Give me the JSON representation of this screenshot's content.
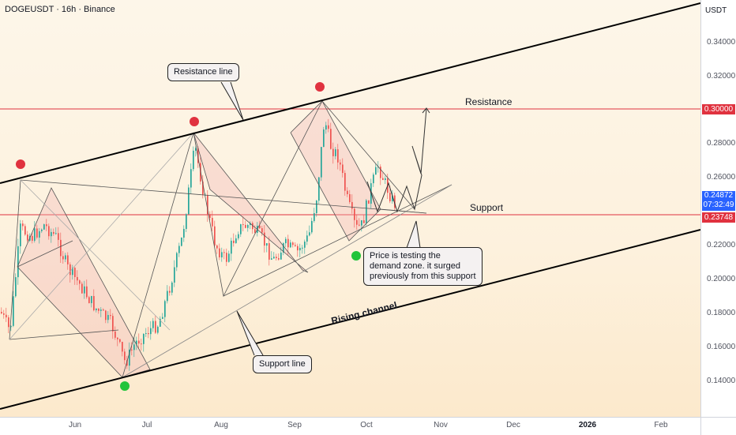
{
  "symbol_title": "DOGEUSDT · 16h · Binance",
  "currency": "USDT",
  "price_ticks": [
    "0.34000",
    "0.32000",
    "0.28000",
    "0.26000",
    "0.22000",
    "0.20000",
    "0.18000",
    "0.16000",
    "0.14000"
  ],
  "price_tags": {
    "resistance": "0.30000",
    "current": "0.24872",
    "countdown": "07:32:49",
    "support": "0.23748"
  },
  "time_ticks": [
    {
      "label": "Jun",
      "bold": false
    },
    {
      "label": "Jul",
      "bold": false
    },
    {
      "label": "Aug",
      "bold": false
    },
    {
      "label": "Sep",
      "bold": false
    },
    {
      "label": "Oct",
      "bold": false
    },
    {
      "label": "Nov",
      "bold": false
    },
    {
      "label": "Dec",
      "bold": false
    },
    {
      "label": "2026",
      "bold": true
    },
    {
      "label": "Feb",
      "bold": false
    }
  ],
  "annotations": {
    "resistance_label": "Resistance",
    "support_label": "Support",
    "channel_label": "Rising channel",
    "resistance_callout": "Resistance line",
    "support_callout": "Support line",
    "price_callout_1": "Price is testing the",
    "price_callout_2": "demand zone. it surged",
    "price_callout_3": "previously from this support"
  },
  "colors": {
    "red_marker": "#e0323f",
    "green_marker": "#21c43a",
    "up_candle": "#26a69a",
    "down_candle": "#ef5350",
    "horizontal_line": "#e0323f",
    "channel_line": "#000000"
  },
  "chart_data": {
    "type": "candlestick",
    "pair": "DOGEUSDT",
    "interval": "16h",
    "exchange": "Binance",
    "horizontal_levels": [
      {
        "label": "Resistance",
        "price": 0.3
      },
      {
        "label": "Support",
        "price": 0.23748
      }
    ],
    "current_price": 0.24872,
    "approx_closes": [
      {
        "date": "2025-05-10",
        "price": 0.22
      },
      {
        "date": "2025-05-20",
        "price": 0.24
      },
      {
        "date": "2025-06-05",
        "price": 0.19
      },
      {
        "date": "2025-06-22",
        "price": 0.15
      },
      {
        "date": "2025-07-10",
        "price": 0.2
      },
      {
        "date": "2025-07-21",
        "price": 0.28
      },
      {
        "date": "2025-08-02",
        "price": 0.2
      },
      {
        "date": "2025-08-15",
        "price": 0.24
      },
      {
        "date": "2025-09-01",
        "price": 0.21
      },
      {
        "date": "2025-09-13",
        "price": 0.3
      },
      {
        "date": "2025-09-25",
        "price": 0.22
      },
      {
        "date": "2025-10-06",
        "price": 0.26
      },
      {
        "date": "2025-10-16",
        "price": 0.24
      }
    ]
  }
}
